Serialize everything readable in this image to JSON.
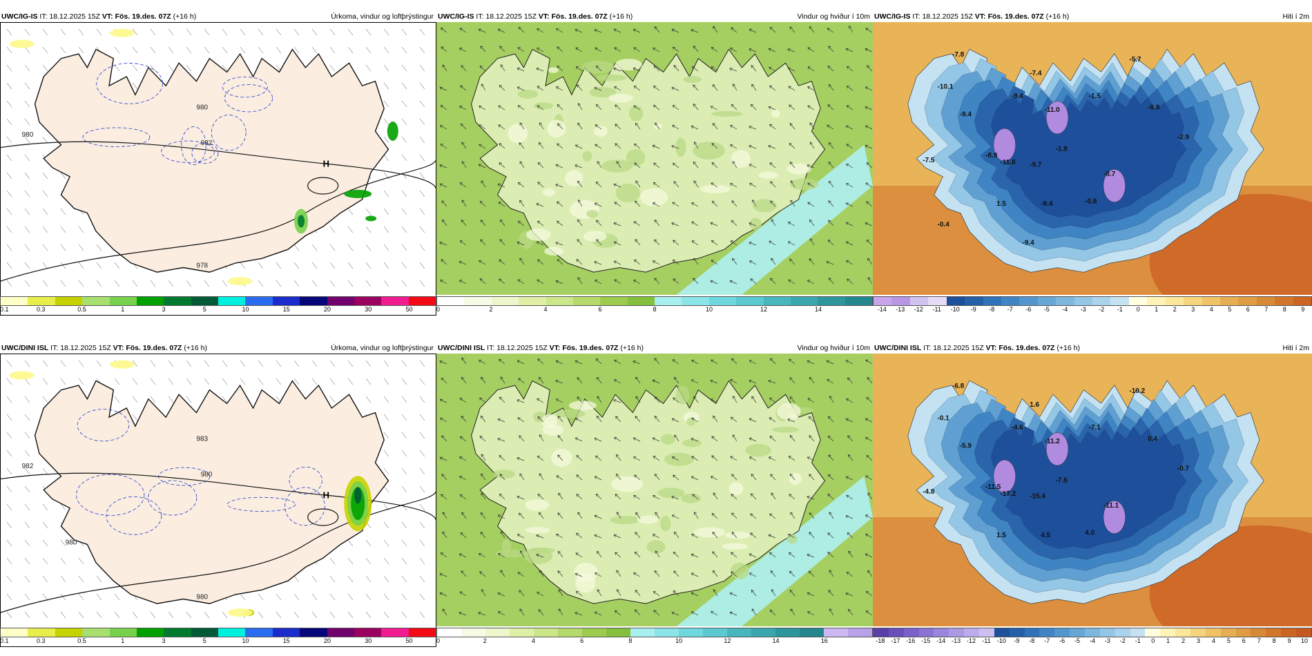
{
  "rows": [
    {
      "panels": [
        {
          "model": "UWC/IG-IS",
          "it_label": "IT:",
          "it_value": "18.12.2025 15Z",
          "vt_label": "VT:",
          "vt_value": "Fös. 19.des. 07Z",
          "lead": "(+16 h)",
          "title": "Úrkoma, vindur og loftþrýstingur",
          "kind": "precip",
          "colorbar": [
            "#fefec8",
            "#e8ee4a",
            "#c6d200",
            "#a7e06f",
            "#78d14d",
            "#00a000",
            "#007a2e",
            "#005a36",
            "#00f0e0",
            "#2a6cf0",
            "#1a2ccc",
            "#06067a",
            "#70006c",
            "#9a0060",
            "#f01c90",
            "#f20a14"
          ],
          "ticks": [
            "0.1",
            "0.3",
            "0.5",
            "1",
            "3",
            "5",
            "10",
            "15",
            "20",
            "30",
            "50"
          ],
          "map_labels": [
            "980",
            "982",
            "980",
            "978"
          ],
          "high_label": "H"
        },
        {
          "model": "UWC/IG-IS",
          "it_label": "IT:",
          "it_value": "18.12.2025 15Z",
          "vt_label": "VT:",
          "vt_value": "Fös. 19.des. 07Z",
          "lead": "(+16 h)",
          "title": "Vindur og hviður í 10m",
          "kind": "wind",
          "colorbar": [
            "#ffffff",
            "#f6fbe6",
            "#eef7cc",
            "#dff0a6",
            "#cce68a",
            "#b5d96b",
            "#9ccb4e",
            "#84bf3d",
            "#a8f0f0",
            "#8ae4e8",
            "#6fd8de",
            "#5cc8cf",
            "#48b7bd",
            "#3aa6ad",
            "#2d969d",
            "#25878e"
          ],
          "ticks": [
            "0",
            "2",
            "4",
            "6",
            "8",
            "10",
            "12",
            "14"
          ]
        },
        {
          "model": "UWC/IG-IS",
          "it_label": "IT:",
          "it_value": "18.12.2025 15Z",
          "vt_label": "VT:",
          "vt_value": "Fös. 19.des. 07Z",
          "lead": "(+16 h)",
          "title": "Hiti í 2m",
          "kind": "temp",
          "colorbar": [
            "#c9a4ec",
            "#b896e6",
            "#d2c2f0",
            "#e6dcf5",
            "#1d4f9a",
            "#2460a8",
            "#2f72b7",
            "#3f84c3",
            "#5396cd",
            "#67a7d6",
            "#7db7de",
            "#94c6e6",
            "#abd4ec",
            "#c4e2f1",
            "#ffffe0",
            "#fff3b8",
            "#fce69a",
            "#f5d47e",
            "#efc266",
            "#e6ae52",
            "#df9c42",
            "#d88936",
            "#d2762c",
            "#cc6524"
          ],
          "ticks": [
            "-14",
            "-13",
            "-12",
            "-11",
            "-10",
            "-9",
            "-8",
            "-7",
            "-6",
            "-5",
            "-4",
            "-3",
            "-2",
            "-1",
            "0",
            "1",
            "2",
            "3",
            "4",
            "5",
            "6",
            "7",
            "8",
            "9"
          ],
          "temp_labels": [
            "-7.8",
            "-10.1",
            "-9.4",
            "-7.4",
            "-9.4",
            "-11.0",
            "-1.5",
            "-5.7",
            "-6.9",
            "-7.5",
            "-8.9",
            "-11.8",
            "-9.7",
            "-1.9",
            "-8.7",
            "-2.9",
            "1.5",
            "-9.4",
            "-0.6",
            "-0.4",
            "-9.4"
          ]
        }
      ]
    },
    {
      "panels": [
        {
          "model": "UWC/DINI ISL",
          "it_label": "IT:",
          "it_value": "18.12.2025 15Z",
          "vt_label": "VT:",
          "vt_value": "Fös. 19.des. 07Z",
          "lead": "(+16 h)",
          "title": "Úrkoma, vindur og loftþrýstingur",
          "kind": "precip",
          "colorbar": [
            "#fefec8",
            "#e8ee4a",
            "#c6d200",
            "#a7e06f",
            "#78d14d",
            "#00a000",
            "#007a2e",
            "#005a36",
            "#00f0e0",
            "#2a6cf0",
            "#1a2ccc",
            "#06067a",
            "#70006c",
            "#9a0060",
            "#f01c90",
            "#f20a14"
          ],
          "ticks": [
            "0.1",
            "0.3",
            "0.5",
            "1",
            "3",
            "5",
            "10",
            "15",
            "20",
            "30",
            "50"
          ],
          "map_labels": [
            "982",
            "980",
            "983",
            "980",
            "980"
          ],
          "high_label": "H"
        },
        {
          "model": "UWC/DINI ISL",
          "it_label": "IT:",
          "it_value": "18.12.2025 15Z",
          "vt_label": "VT:",
          "vt_value": "Fös. 19.des. 07Z",
          "lead": "(+16 h)",
          "title": "Vindur og hviður í 10m",
          "kind": "wind",
          "colorbar": [
            "#ffffff",
            "#f6fbe6",
            "#eef7cc",
            "#dff0a6",
            "#cce68a",
            "#b5d96b",
            "#9ccb4e",
            "#84bf3d",
            "#a8f0f0",
            "#8ae4e8",
            "#6fd8de",
            "#5cc8cf",
            "#48b7bd",
            "#3aa6ad",
            "#2d969d",
            "#25878e",
            "#cdb8f2",
            "#b9a2ea"
          ],
          "ticks": [
            "0",
            "2",
            "4",
            "6",
            "8",
            "10",
            "12",
            "14",
            "16"
          ]
        },
        {
          "model": "UWC/DINI ISL",
          "it_label": "IT:",
          "it_value": "18.12.2025 15Z",
          "vt_label": "VT:",
          "vt_value": "Fös. 19.des. 07Z",
          "lead": "(+16 h)",
          "title": "Hiti í 2m",
          "kind": "temp",
          "colorbar": [
            "#5a3fa8",
            "#6a4fbb",
            "#7a60c8",
            "#8a73d3",
            "#9a86dc",
            "#ab99e4",
            "#bcaceb",
            "#cdc0f1",
            "#1d4f9a",
            "#2460a8",
            "#2f72b7",
            "#3f84c3",
            "#5396cd",
            "#67a7d6",
            "#7db7de",
            "#94c6e6",
            "#abd4ec",
            "#c4e2f1",
            "#ffffe0",
            "#fff3b8",
            "#fce69a",
            "#f5d47e",
            "#efc266",
            "#e6ae52",
            "#df9c42",
            "#d88936",
            "#d2762c",
            "#cc6524",
            "#c55a20"
          ],
          "ticks": [
            "-18",
            "-17",
            "-16",
            "-15",
            "-14",
            "-13",
            "-12",
            "-11",
            "-10",
            "-9",
            "-8",
            "-7",
            "-6",
            "-5",
            "-4",
            "-3",
            "-2",
            "-1",
            "0",
            "1",
            "2",
            "3",
            "4",
            "5",
            "6",
            "7",
            "8",
            "9",
            "10"
          ],
          "temp_labels": [
            "-6.8",
            "-0.1",
            "-5.9",
            "1.6",
            "-4.6",
            "-11.2",
            "-7.1",
            "-10.2",
            "0.4",
            "-4.8",
            "-11.5",
            "-17.2",
            "-15.4",
            "-7.6",
            "-11.1",
            "-0.7",
            "1.5",
            "4.5",
            "4.0"
          ]
        }
      ]
    }
  ]
}
